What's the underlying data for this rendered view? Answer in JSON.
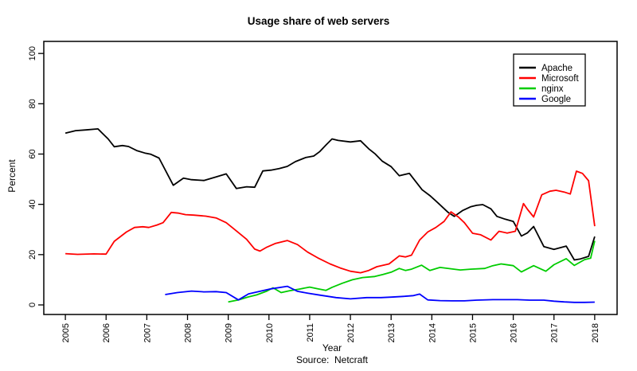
{
  "page": {
    "background": "#ffffff"
  },
  "chart_data": {
    "type": "line",
    "title": "Usage share of web servers",
    "xlabel": "Year",
    "ylabel": "Percent",
    "caption": "Source:  Netcraft",
    "grid": false,
    "legend_position": "top-right",
    "axis_color": "#000000",
    "x_ticks": [
      2005,
      2006,
      2007,
      2008,
      2009,
      2010,
      2011,
      2012,
      2013,
      2014,
      2015,
      2016,
      2017,
      2018
    ],
    "y_ticks": [
      0,
      20,
      40,
      60,
      80,
      100
    ],
    "xlim": [
      2004.47,
      2018.55
    ],
    "ylim": [
      -3.8,
      104.8
    ],
    "series": [
      {
        "name": "Apache",
        "color": "#000000",
        "points": [
          [
            2005.0,
            68.3
          ],
          [
            2005.25,
            69.3
          ],
          [
            2005.5,
            69.6
          ],
          [
            2005.8,
            70.0
          ],
          [
            2006.05,
            66.0
          ],
          [
            2006.2,
            62.9
          ],
          [
            2006.4,
            63.4
          ],
          [
            2006.55,
            63.0
          ],
          [
            2006.75,
            61.4
          ],
          [
            2006.95,
            60.4
          ],
          [
            2007.1,
            59.9
          ],
          [
            2007.3,
            58.4
          ],
          [
            2007.65,
            47.6
          ],
          [
            2007.9,
            50.4
          ],
          [
            2008.1,
            49.8
          ],
          [
            2008.4,
            49.5
          ],
          [
            2008.7,
            50.9
          ],
          [
            2008.95,
            52.1
          ],
          [
            2009.2,
            46.3
          ],
          [
            2009.45,
            47.0
          ],
          [
            2009.65,
            46.8
          ],
          [
            2009.85,
            53.3
          ],
          [
            2010.05,
            53.6
          ],
          [
            2010.25,
            54.2
          ],
          [
            2010.45,
            55.1
          ],
          [
            2010.65,
            57.0
          ],
          [
            2010.9,
            58.6
          ],
          [
            2011.1,
            59.2
          ],
          [
            2011.25,
            61.0
          ],
          [
            2011.4,
            63.6
          ],
          [
            2011.55,
            66.0
          ],
          [
            2011.7,
            65.4
          ],
          [
            2012.0,
            64.8
          ],
          [
            2012.25,
            65.3
          ],
          [
            2012.45,
            62.1
          ],
          [
            2012.6,
            60.2
          ],
          [
            2012.78,
            57.2
          ],
          [
            2013.0,
            55.0
          ],
          [
            2013.2,
            51.4
          ],
          [
            2013.45,
            52.3
          ],
          [
            2013.55,
            50.2
          ],
          [
            2013.76,
            45.8
          ],
          [
            2013.95,
            43.5
          ],
          [
            2014.15,
            40.6
          ],
          [
            2014.4,
            36.8
          ],
          [
            2014.55,
            35.2
          ],
          [
            2014.75,
            37.5
          ],
          [
            2014.95,
            39.0
          ],
          [
            2015.1,
            39.6
          ],
          [
            2015.25,
            39.9
          ],
          [
            2015.45,
            38.2
          ],
          [
            2015.6,
            35.2
          ],
          [
            2015.8,
            34.1
          ],
          [
            2016.0,
            33.2
          ],
          [
            2016.2,
            27.4
          ],
          [
            2016.35,
            28.7
          ],
          [
            2016.5,
            31.2
          ],
          [
            2016.75,
            23.2
          ],
          [
            2017.0,
            22.1
          ],
          [
            2017.3,
            23.4
          ],
          [
            2017.5,
            17.9
          ],
          [
            2017.65,
            18.3
          ],
          [
            2017.85,
            19.3
          ],
          [
            2018.0,
            27.2
          ]
        ]
      },
      {
        "name": "Microsoft",
        "color": "#ff0000",
        "points": [
          [
            2005.0,
            20.4
          ],
          [
            2005.3,
            20.1
          ],
          [
            2005.7,
            20.3
          ],
          [
            2006.0,
            20.2
          ],
          [
            2006.2,
            25.3
          ],
          [
            2006.5,
            29.0
          ],
          [
            2006.7,
            30.8
          ],
          [
            2006.9,
            31.1
          ],
          [
            2007.05,
            30.8
          ],
          [
            2007.25,
            31.8
          ],
          [
            2007.4,
            32.7
          ],
          [
            2007.6,
            36.8
          ],
          [
            2007.78,
            36.5
          ],
          [
            2007.95,
            35.9
          ],
          [
            2008.15,
            35.7
          ],
          [
            2008.45,
            35.3
          ],
          [
            2008.7,
            34.6
          ],
          [
            2008.95,
            32.7
          ],
          [
            2009.15,
            30.1
          ],
          [
            2009.45,
            26.1
          ],
          [
            2009.65,
            22.2
          ],
          [
            2009.78,
            21.4
          ],
          [
            2009.95,
            23.0
          ],
          [
            2010.15,
            24.4
          ],
          [
            2010.45,
            25.6
          ],
          [
            2010.7,
            24.0
          ],
          [
            2010.95,
            21.0
          ],
          [
            2011.2,
            18.7
          ],
          [
            2011.5,
            16.3
          ],
          [
            2011.75,
            14.7
          ],
          [
            2012.0,
            13.4
          ],
          [
            2012.25,
            12.8
          ],
          [
            2012.45,
            13.7
          ],
          [
            2012.65,
            15.2
          ],
          [
            2012.95,
            16.3
          ],
          [
            2013.2,
            19.5
          ],
          [
            2013.35,
            19.1
          ],
          [
            2013.5,
            19.8
          ],
          [
            2013.7,
            25.8
          ],
          [
            2013.9,
            29.0
          ],
          [
            2014.1,
            30.8
          ],
          [
            2014.3,
            33.2
          ],
          [
            2014.47,
            37.0
          ],
          [
            2014.65,
            35.0
          ],
          [
            2014.8,
            32.7
          ],
          [
            2015.0,
            28.5
          ],
          [
            2015.2,
            27.9
          ],
          [
            2015.45,
            25.8
          ],
          [
            2015.65,
            29.3
          ],
          [
            2015.85,
            28.6
          ],
          [
            2016.05,
            29.3
          ],
          [
            2016.25,
            40.3
          ],
          [
            2016.35,
            38.0
          ],
          [
            2016.5,
            35.0
          ],
          [
            2016.7,
            43.8
          ],
          [
            2016.9,
            45.2
          ],
          [
            2017.05,
            45.6
          ],
          [
            2017.25,
            44.9
          ],
          [
            2017.4,
            44.1
          ],
          [
            2017.55,
            53.2
          ],
          [
            2017.7,
            52.3
          ],
          [
            2017.85,
            49.4
          ],
          [
            2018.0,
            31.3
          ]
        ]
      },
      {
        "name": "nginx",
        "color": "#00cc00",
        "points": [
          [
            2009.0,
            1.2
          ],
          [
            2009.25,
            2.0
          ],
          [
            2009.5,
            3.2
          ],
          [
            2009.7,
            4.0
          ],
          [
            2009.95,
            5.5
          ],
          [
            2010.1,
            6.8
          ],
          [
            2010.3,
            4.9
          ],
          [
            2010.5,
            5.6
          ],
          [
            2010.75,
            6.3
          ],
          [
            2011.0,
            7.1
          ],
          [
            2011.2,
            6.4
          ],
          [
            2011.4,
            5.8
          ],
          [
            2011.55,
            7.0
          ],
          [
            2011.8,
            8.6
          ],
          [
            2012.05,
            10.0
          ],
          [
            2012.3,
            10.9
          ],
          [
            2012.6,
            11.3
          ],
          [
            2012.8,
            12.1
          ],
          [
            2013.0,
            13.0
          ],
          [
            2013.2,
            14.5
          ],
          [
            2013.35,
            13.7
          ],
          [
            2013.5,
            14.2
          ],
          [
            2013.75,
            15.8
          ],
          [
            2013.95,
            13.7
          ],
          [
            2014.2,
            14.9
          ],
          [
            2014.45,
            14.4
          ],
          [
            2014.7,
            13.9
          ],
          [
            2014.95,
            14.2
          ],
          [
            2015.3,
            14.5
          ],
          [
            2015.5,
            15.6
          ],
          [
            2015.7,
            16.3
          ],
          [
            2016.0,
            15.6
          ],
          [
            2016.2,
            13.1
          ],
          [
            2016.5,
            15.6
          ],
          [
            2016.65,
            14.5
          ],
          [
            2016.8,
            13.4
          ],
          [
            2017.0,
            16.0
          ],
          [
            2017.3,
            18.4
          ],
          [
            2017.5,
            15.7
          ],
          [
            2017.75,
            18.0
          ],
          [
            2017.9,
            18.6
          ],
          [
            2018.0,
            25.5
          ]
        ]
      },
      {
        "name": "Google",
        "color": "#0000ff",
        "points": [
          [
            2007.45,
            4.1
          ],
          [
            2007.75,
            4.9
          ],
          [
            2008.1,
            5.5
          ],
          [
            2008.4,
            5.2
          ],
          [
            2008.7,
            5.3
          ],
          [
            2008.95,
            4.9
          ],
          [
            2009.25,
            2.0
          ],
          [
            2009.5,
            4.4
          ],
          [
            2009.8,
            5.5
          ],
          [
            2010.05,
            6.4
          ],
          [
            2010.45,
            7.4
          ],
          [
            2010.7,
            5.4
          ],
          [
            2010.95,
            4.7
          ],
          [
            2011.25,
            3.9
          ],
          [
            2011.65,
            2.9
          ],
          [
            2012.0,
            2.4
          ],
          [
            2012.4,
            2.9
          ],
          [
            2012.75,
            2.9
          ],
          [
            2013.0,
            3.1
          ],
          [
            2013.3,
            3.4
          ],
          [
            2013.55,
            3.7
          ],
          [
            2013.7,
            4.3
          ],
          [
            2013.9,
            2.0
          ],
          [
            2014.2,
            1.7
          ],
          [
            2014.5,
            1.6
          ],
          [
            2014.8,
            1.6
          ],
          [
            2015.1,
            1.9
          ],
          [
            2015.5,
            2.1
          ],
          [
            2015.8,
            2.1
          ],
          [
            2016.1,
            2.1
          ],
          [
            2016.4,
            1.9
          ],
          [
            2016.75,
            1.9
          ],
          [
            2017.0,
            1.5
          ],
          [
            2017.25,
            1.2
          ],
          [
            2017.5,
            1.0
          ],
          [
            2017.75,
            1.0
          ],
          [
            2018.0,
            1.1
          ]
        ]
      }
    ]
  }
}
